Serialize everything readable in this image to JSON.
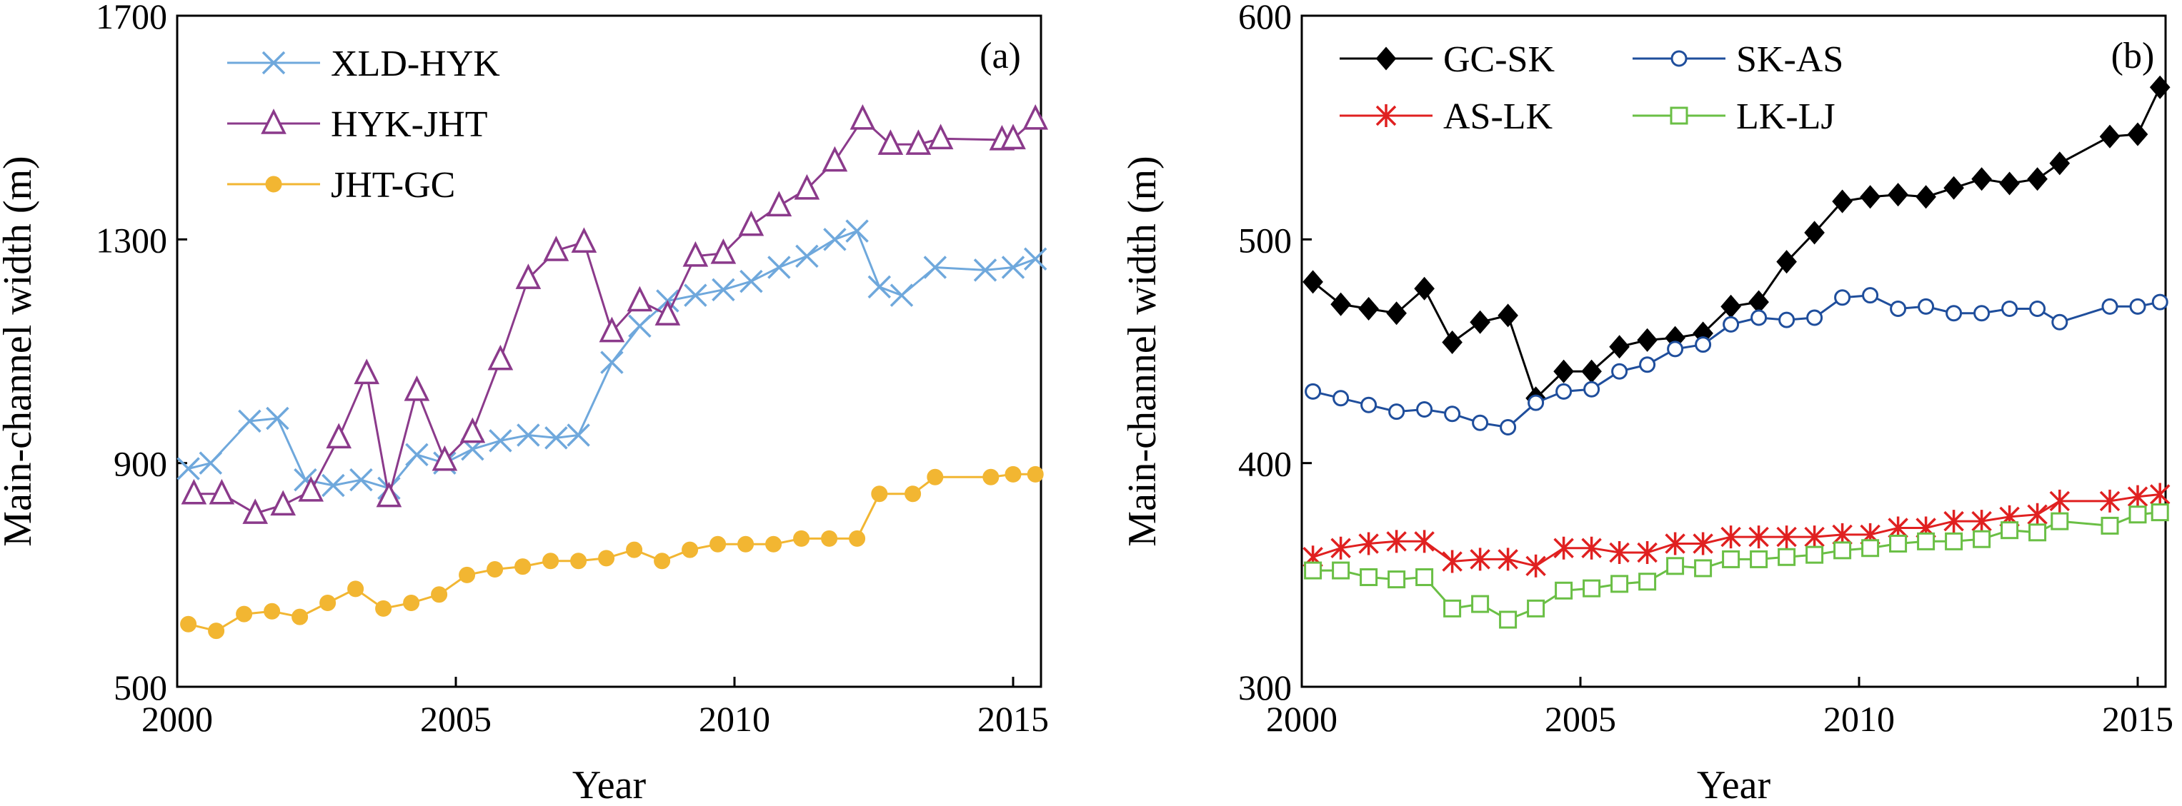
{
  "chart_data": [
    {
      "type": "line",
      "panel_label": "(a)",
      "xlabel": "Year",
      "ylabel": "Main-channel width (m)",
      "xlim": [
        2000,
        2015.5
      ],
      "ylim": [
        500,
        1700
      ],
      "xticks": [
        2000,
        2005,
        2010,
        2015
      ],
      "yticks": [
        500,
        900,
        1300,
        1700
      ],
      "legend_position": "top-left",
      "grid": false,
      "series": [
        {
          "name": "XLD-HYK",
          "color": "#6fa8dc",
          "marker": "x",
          "points": [
            [
              2000.2,
              890
            ],
            [
              2000.6,
              900
            ],
            [
              2001.3,
              975
            ],
            [
              2001.8,
              980
            ],
            [
              2002.3,
              870
            ],
            [
              2002.8,
              860
            ],
            [
              2003.3,
              870
            ],
            [
              2003.8,
              855
            ],
            [
              2004.3,
              915
            ],
            [
              2004.8,
              900
            ],
            [
              2005.3,
              925
            ],
            [
              2005.8,
              940
            ],
            [
              2006.3,
              950
            ],
            [
              2006.8,
              945
            ],
            [
              2007.2,
              950
            ],
            [
              2007.8,
              1080
            ],
            [
              2008.3,
              1145
            ],
            [
              2008.8,
              1190
            ],
            [
              2009.3,
              1200
            ],
            [
              2009.8,
              1210
            ],
            [
              2010.3,
              1225
            ],
            [
              2010.8,
              1250
            ],
            [
              2011.3,
              1270
            ],
            [
              2011.8,
              1300
            ],
            [
              2012.2,
              1315
            ],
            [
              2012.6,
              1215
            ],
            [
              2013.0,
              1200
            ],
            [
              2013.6,
              1250
            ],
            [
              2014.5,
              1245
            ],
            [
              2015.0,
              1250
            ],
            [
              2015.4,
              1265
            ]
          ]
        },
        {
          "name": "HYK-JHT",
          "color": "#8b3a8b",
          "marker": "triangle-open",
          "points": [
            [
              2000.3,
              845
            ],
            [
              2000.8,
              845
            ],
            [
              2001.4,
              810
            ],
            [
              2001.9,
              825
            ],
            [
              2002.4,
              850
            ],
            [
              2002.9,
              945
            ],
            [
              2003.4,
              1060
            ],
            [
              2003.8,
              840
            ],
            [
              2004.3,
              1030
            ],
            [
              2004.8,
              905
            ],
            [
              2005.3,
              955
            ],
            [
              2005.8,
              1085
            ],
            [
              2006.3,
              1230
            ],
            [
              2006.8,
              1280
            ],
            [
              2007.3,
              1295
            ],
            [
              2007.8,
              1135
            ],
            [
              2008.3,
              1190
            ],
            [
              2008.8,
              1165
            ],
            [
              2009.3,
              1270
            ],
            [
              2009.8,
              1275
            ],
            [
              2010.3,
              1325
            ],
            [
              2010.8,
              1360
            ],
            [
              2011.3,
              1390
            ],
            [
              2011.8,
              1440
            ],
            [
              2012.3,
              1515
            ],
            [
              2012.8,
              1470
            ],
            [
              2013.3,
              1470
            ],
            [
              2013.7,
              1480
            ],
            [
              2014.8,
              1478
            ],
            [
              2015.0,
              1480
            ],
            [
              2015.4,
              1515
            ]
          ]
        },
        {
          "name": "JHT-GC",
          "color": "#f2b632",
          "marker": "circle-filled",
          "points": [
            [
              2000.2,
              612
            ],
            [
              2000.7,
              600
            ],
            [
              2001.2,
              630
            ],
            [
              2001.7,
              635
            ],
            [
              2002.2,
              625
            ],
            [
              2002.7,
              650
            ],
            [
              2003.2,
              675
            ],
            [
              2003.7,
              640
            ],
            [
              2004.2,
              650
            ],
            [
              2004.7,
              665
            ],
            [
              2005.2,
              700
            ],
            [
              2005.7,
              710
            ],
            [
              2006.2,
              715
            ],
            [
              2006.7,
              725
            ],
            [
              2007.2,
              725
            ],
            [
              2007.7,
              730
            ],
            [
              2008.2,
              745
            ],
            [
              2008.7,
              725
            ],
            [
              2009.2,
              745
            ],
            [
              2009.7,
              755
            ],
            [
              2010.2,
              755
            ],
            [
              2010.7,
              755
            ],
            [
              2011.2,
              765
            ],
            [
              2011.7,
              765
            ],
            [
              2012.2,
              765
            ],
            [
              2012.6,
              845
            ],
            [
              2013.2,
              845
            ],
            [
              2013.6,
              875
            ],
            [
              2014.6,
              875
            ],
            [
              2015.0,
              880
            ],
            [
              2015.4,
              880
            ]
          ]
        }
      ]
    },
    {
      "type": "line",
      "panel_label": "(b)",
      "xlabel": "Year",
      "ylabel": "Main-channel width (m)",
      "xlim": [
        2000,
        2015.5
      ],
      "ylim": [
        300,
        600
      ],
      "xticks": [
        2000,
        2005,
        2010,
        2015
      ],
      "yticks": [
        300,
        400,
        500,
        600
      ],
      "legend_position": "top-left",
      "grid": false,
      "series": [
        {
          "name": "GC-SK",
          "color": "#000000",
          "marker": "diamond-filled",
          "points": [
            [
              2000.2,
              481
            ],
            [
              2000.7,
              471
            ],
            [
              2001.2,
              469
            ],
            [
              2001.7,
              467
            ],
            [
              2002.2,
              478
            ],
            [
              2002.7,
              454
            ],
            [
              2003.2,
              463
            ],
            [
              2003.7,
              466
            ],
            [
              2004.2,
              429
            ],
            [
              2004.7,
              441
            ],
            [
              2005.2,
              441
            ],
            [
              2005.7,
              452
            ],
            [
              2006.2,
              455
            ],
            [
              2006.7,
              456
            ],
            [
              2007.2,
              458
            ],
            [
              2007.7,
              470
            ],
            [
              2008.2,
              472
            ],
            [
              2008.7,
              490
            ],
            [
              2009.2,
              503
            ],
            [
              2009.7,
              517
            ],
            [
              2010.2,
              519
            ],
            [
              2010.7,
              520
            ],
            [
              2011.2,
              519
            ],
            [
              2011.7,
              523
            ],
            [
              2012.2,
              527
            ],
            [
              2012.7,
              525
            ],
            [
              2013.2,
              527
            ],
            [
              2013.6,
              534
            ],
            [
              2014.5,
              546
            ],
            [
              2015.0,
              547
            ],
            [
              2015.4,
              568
            ]
          ]
        },
        {
          "name": "SK-AS",
          "color": "#1f4e9c",
          "marker": "circle-open",
          "points": [
            [
              2000.2,
              432
            ],
            [
              2000.7,
              429
            ],
            [
              2001.2,
              426
            ],
            [
              2001.7,
              423
            ],
            [
              2002.2,
              424
            ],
            [
              2002.7,
              422
            ],
            [
              2003.2,
              418
            ],
            [
              2003.7,
              416
            ],
            [
              2004.2,
              427
            ],
            [
              2004.7,
              432
            ],
            [
              2005.2,
              433
            ],
            [
              2005.7,
              441
            ],
            [
              2006.2,
              444
            ],
            [
              2006.7,
              451
            ],
            [
              2007.2,
              453
            ],
            [
              2007.7,
              462
            ],
            [
              2008.2,
              465
            ],
            [
              2008.7,
              464
            ],
            [
              2009.2,
              465
            ],
            [
              2009.7,
              474
            ],
            [
              2010.2,
              475
            ],
            [
              2010.7,
              469
            ],
            [
              2011.2,
              470
            ],
            [
              2011.7,
              467
            ],
            [
              2012.2,
              467
            ],
            [
              2012.7,
              469
            ],
            [
              2013.2,
              469
            ],
            [
              2013.6,
              463
            ],
            [
              2014.5,
              470
            ],
            [
              2015.0,
              470
            ],
            [
              2015.4,
              472
            ]
          ]
        },
        {
          "name": "AS-LK",
          "color": "#e02020",
          "marker": "asterisk",
          "points": [
            [
              2000.2,
              358
            ],
            [
              2000.7,
              362
            ],
            [
              2001.2,
              364
            ],
            [
              2001.7,
              365
            ],
            [
              2002.2,
              365
            ],
            [
              2002.7,
              356
            ],
            [
              2003.2,
              357
            ],
            [
              2003.7,
              357
            ],
            [
              2004.2,
              354
            ],
            [
              2004.7,
              362
            ],
            [
              2005.2,
              362
            ],
            [
              2005.7,
              360
            ],
            [
              2006.2,
              360
            ],
            [
              2006.7,
              364
            ],
            [
              2007.2,
              364
            ],
            [
              2007.7,
              367
            ],
            [
              2008.2,
              367
            ],
            [
              2008.7,
              367
            ],
            [
              2009.2,
              367
            ],
            [
              2009.7,
              368
            ],
            [
              2010.2,
              368
            ],
            [
              2010.7,
              371
            ],
            [
              2011.2,
              371
            ],
            [
              2011.7,
              374
            ],
            [
              2012.2,
              374
            ],
            [
              2012.7,
              376
            ],
            [
              2013.2,
              377
            ],
            [
              2013.6,
              383
            ],
            [
              2014.5,
              383
            ],
            [
              2015.0,
              385
            ],
            [
              2015.4,
              386
            ]
          ]
        },
        {
          "name": "LK-LJ",
          "color": "#6abf45",
          "marker": "square-open",
          "points": [
            [
              2000.2,
              352
            ],
            [
              2000.7,
              352
            ],
            [
              2001.2,
              349
            ],
            [
              2001.7,
              348
            ],
            [
              2002.2,
              349
            ],
            [
              2002.7,
              335
            ],
            [
              2003.2,
              337
            ],
            [
              2003.7,
              330
            ],
            [
              2004.2,
              335
            ],
            [
              2004.7,
              343
            ],
            [
              2005.2,
              344
            ],
            [
              2005.7,
              346
            ],
            [
              2006.2,
              347
            ],
            [
              2006.7,
              354
            ],
            [
              2007.2,
              353
            ],
            [
              2007.7,
              357
            ],
            [
              2008.2,
              357
            ],
            [
              2008.7,
              358
            ],
            [
              2009.2,
              359
            ],
            [
              2009.7,
              361
            ],
            [
              2010.2,
              362
            ],
            [
              2010.7,
              364
            ],
            [
              2011.2,
              365
            ],
            [
              2011.7,
              365
            ],
            [
              2012.2,
              366
            ],
            [
              2012.7,
              370
            ],
            [
              2013.2,
              369
            ],
            [
              2013.6,
              374
            ],
            [
              2014.5,
              372
            ],
            [
              2015.0,
              377
            ],
            [
              2015.4,
              378
            ]
          ]
        }
      ]
    }
  ]
}
